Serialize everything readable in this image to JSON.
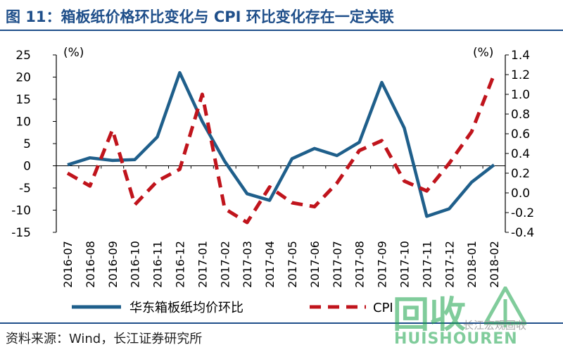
{
  "title": "图 11：箱板纸价格环比变化与 CPI 环比变化存在一定关联",
  "source": "资料来源：Wind，长江证券研究所",
  "watermark": {
    "big": "回收",
    "small": "HUISHOUREN",
    "caption": "长江宏观固收"
  },
  "chart_data": {
    "type": "line",
    "categories": [
      "2016-07",
      "2016-08",
      "2016-09",
      "2016-10",
      "2016-11",
      "2016-12",
      "2017-01",
      "2017-02",
      "2017-03",
      "2017-04",
      "2017-05",
      "2017-06",
      "2017-07",
      "2017-08",
      "2017-09",
      "2017-10",
      "2017-11",
      "2017-12",
      "2018-01",
      "2018-02"
    ],
    "left_axis": {
      "unit": "(%)",
      "ylim": [
        -15,
        25
      ],
      "ticks": [
        25,
        20,
        15,
        10,
        5,
        0,
        -5,
        -10,
        -15
      ]
    },
    "right_axis": {
      "unit": "(%)",
      "ylim": [
        -0.4,
        1.4
      ],
      "ticks": [
        "1.4",
        "1.2",
        "1.0",
        "0.8",
        "0.6",
        "0.4",
        "0.2",
        "0.0",
        "-0.2",
        "-0.4"
      ]
    },
    "series": [
      {
        "name": "华东箱板纸均价环比",
        "axis": "left",
        "color": "#1f5f8b",
        "style": "solid",
        "values": [
          0.2,
          1.8,
          1.2,
          1.4,
          6.5,
          21.0,
          10.0,
          1.0,
          -6.3,
          -7.8,
          1.6,
          3.9,
          2.3,
          5.3,
          18.8,
          8.5,
          -11.4,
          -9.7,
          -3.7,
          0.2
        ]
      },
      {
        "name": "CPI",
        "axis": "right",
        "color": "#c0141c",
        "style": "dashed",
        "values": [
          0.2,
          0.07,
          0.64,
          -0.12,
          0.12,
          0.24,
          1.0,
          -0.16,
          -0.3,
          0.06,
          -0.1,
          -0.14,
          0.1,
          0.43,
          0.53,
          0.12,
          0.02,
          0.3,
          0.62,
          1.2
        ]
      }
    ]
  }
}
